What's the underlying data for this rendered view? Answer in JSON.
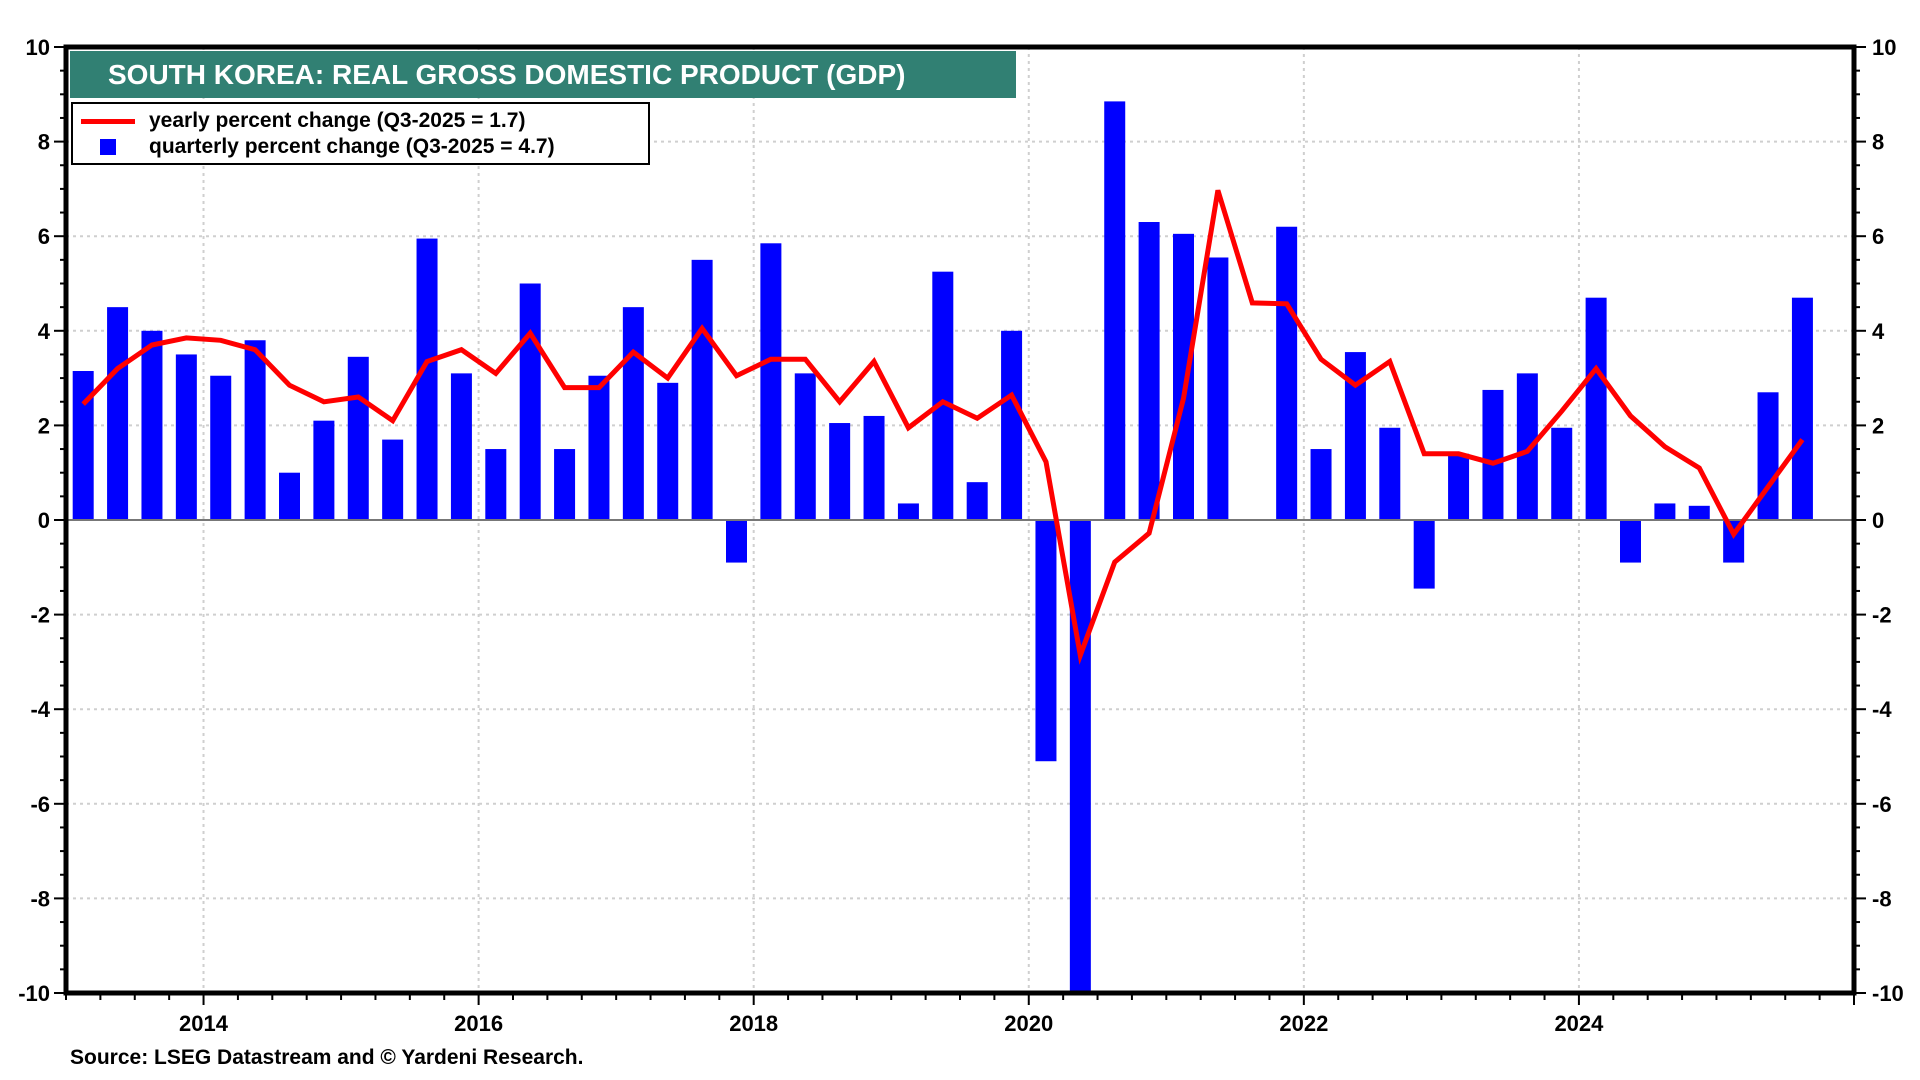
{
  "chart_data": {
    "type": "bar",
    "title": "SOUTH KOREA: REAL GROSS DOMESTIC PRODUCT (GDP)",
    "xlabel": "",
    "ylabel": "",
    "ylim": [
      -10,
      10
    ],
    "xlim": [
      2013.0,
      2026.0
    ],
    "y_ticks": [
      10,
      8,
      6,
      4,
      2,
      0,
      -2,
      -4,
      -6,
      -8,
      -10
    ],
    "y_tick_labels": [
      "10",
      "8",
      "6",
      "4",
      "2",
      "0",
      "-2",
      "-4",
      "-6",
      "-8",
      "-10"
    ],
    "x_ticks": [
      2014,
      2016,
      2018,
      2020,
      2022,
      2024
    ],
    "x_tick_labels": [
      "2014",
      "2016",
      "2018",
      "2020",
      "2022",
      "2024"
    ],
    "grid": true,
    "legend_position": "top-left",
    "categories": [
      "Q1-2013",
      "Q2-2013",
      "Q3-2013",
      "Q4-2013",
      "Q1-2014",
      "Q2-2014",
      "Q3-2014",
      "Q4-2014",
      "Q1-2015",
      "Q2-2015",
      "Q3-2015",
      "Q4-2015",
      "Q1-2016",
      "Q2-2016",
      "Q3-2016",
      "Q4-2016",
      "Q1-2017",
      "Q2-2017",
      "Q3-2017",
      "Q4-2017",
      "Q1-2018",
      "Q2-2018",
      "Q3-2018",
      "Q4-2018",
      "Q1-2019",
      "Q2-2019",
      "Q3-2019",
      "Q4-2019",
      "Q1-2020",
      "Q2-2020",
      "Q3-2020",
      "Q4-2020",
      "Q1-2021",
      "Q2-2021",
      "Q3-2021",
      "Q4-2021",
      "Q1-2022",
      "Q2-2022",
      "Q3-2022",
      "Q4-2022",
      "Q1-2023",
      "Q2-2023",
      "Q3-2023",
      "Q4-2023",
      "Q1-2024",
      "Q2-2024",
      "Q3-2024",
      "Q4-2024",
      "Q1-2025",
      "Q2-2025",
      "Q3-2025"
    ],
    "series": [
      {
        "name": "quarterly percent change",
        "kind": "bar",
        "color": "#0000ff",
        "values": [
          3.15,
          4.5,
          4.0,
          3.5,
          3.05,
          3.8,
          1.0,
          2.1,
          3.45,
          1.7,
          5.95,
          3.1,
          1.5,
          5.0,
          1.5,
          3.05,
          4.5,
          2.9,
          5.5,
          -0.9,
          5.85,
          3.1,
          2.05,
          2.2,
          0.35,
          5.25,
          0.8,
          4.0,
          -5.1,
          -11.5,
          8.85,
          6.3,
          6.05,
          5.55,
          0.0,
          6.2,
          1.5,
          3.55,
          1.95,
          -1.45,
          1.4,
          2.75,
          3.1,
          1.95,
          4.7,
          -0.9,
          0.35,
          0.3,
          -0.9,
          2.7,
          4.7
        ]
      },
      {
        "name": "yearly percent change",
        "kind": "line",
        "color": "#ff0000",
        "values": [
          2.45,
          3.2,
          3.7,
          3.85,
          3.8,
          3.6,
          2.85,
          2.5,
          2.6,
          2.1,
          3.35,
          3.6,
          3.1,
          3.95,
          2.8,
          2.8,
          3.55,
          3.0,
          4.05,
          3.05,
          3.4,
          3.4,
          2.5,
          3.35,
          1.95,
          2.5,
          2.15,
          2.64,
          1.23,
          -2.86,
          -0.89,
          -0.28,
          2.57,
          6.97,
          4.59,
          4.57,
          3.4,
          2.85,
          3.35,
          1.4,
          1.4,
          1.2,
          1.45,
          2.3,
          3.2,
          2.2,
          1.55,
          1.1,
          -0.3,
          0.7,
          1.7
        ]
      }
    ],
    "legend": [
      {
        "label": "yearly percent change (Q3-2025 = 1.7)",
        "marker": "line",
        "color": "#ff0000"
      },
      {
        "label": "quarterly percent change (Q3-2025 = 4.7)",
        "marker": "square",
        "color": "#0000ff"
      }
    ],
    "annotations": [
      "Source: LSEG Datastream and © Yardeni Research."
    ]
  },
  "header": {
    "title": "SOUTH KOREA: REAL GROSS DOMESTIC PRODUCT (GDP)",
    "title_bg_color": "#318073"
  },
  "legend": {
    "yearly_label": "yearly percent change (Q3-2025 = 1.7)",
    "quarterly_label": "quarterly percent change (Q3-2025 = 4.7)"
  },
  "footer": {
    "source": "Source: LSEG Datastream and © Yardeni Research."
  }
}
